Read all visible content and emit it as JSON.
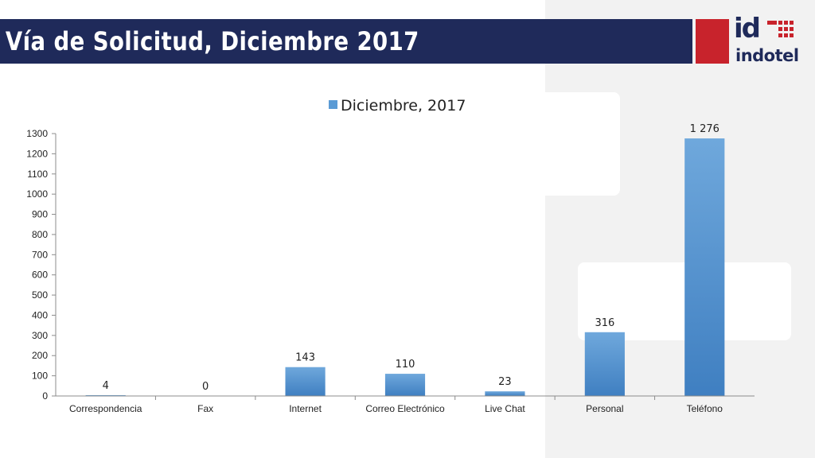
{
  "slide": {
    "title": "Vía de Solicitud, Diciembre 2017"
  },
  "logo": {
    "mark": "id",
    "word": "indotel"
  },
  "chart_data": {
    "type": "bar",
    "categories": [
      "Correspondencia",
      "Fax",
      "Internet",
      "Correo Electrónico",
      "Live Chat",
      "Personal",
      "Teléfono"
    ],
    "series": [
      {
        "name": "Diciembre, 2017",
        "values": [
          4,
          0,
          143,
          110,
          23,
          316,
          1276
        ],
        "color": "#5b9bd5"
      }
    ],
    "data_labels": [
      "4",
      "0",
      "143",
      "110",
      "23",
      "316",
      "1 276"
    ],
    "yticks": [
      0,
      100,
      200,
      300,
      400,
      500,
      600,
      700,
      800,
      900,
      1000,
      1100,
      1200,
      1300
    ],
    "ylim": [
      0,
      1300
    ],
    "grid": false,
    "legend_position": "top-center",
    "title": "",
    "xlabel": "",
    "ylabel": ""
  }
}
